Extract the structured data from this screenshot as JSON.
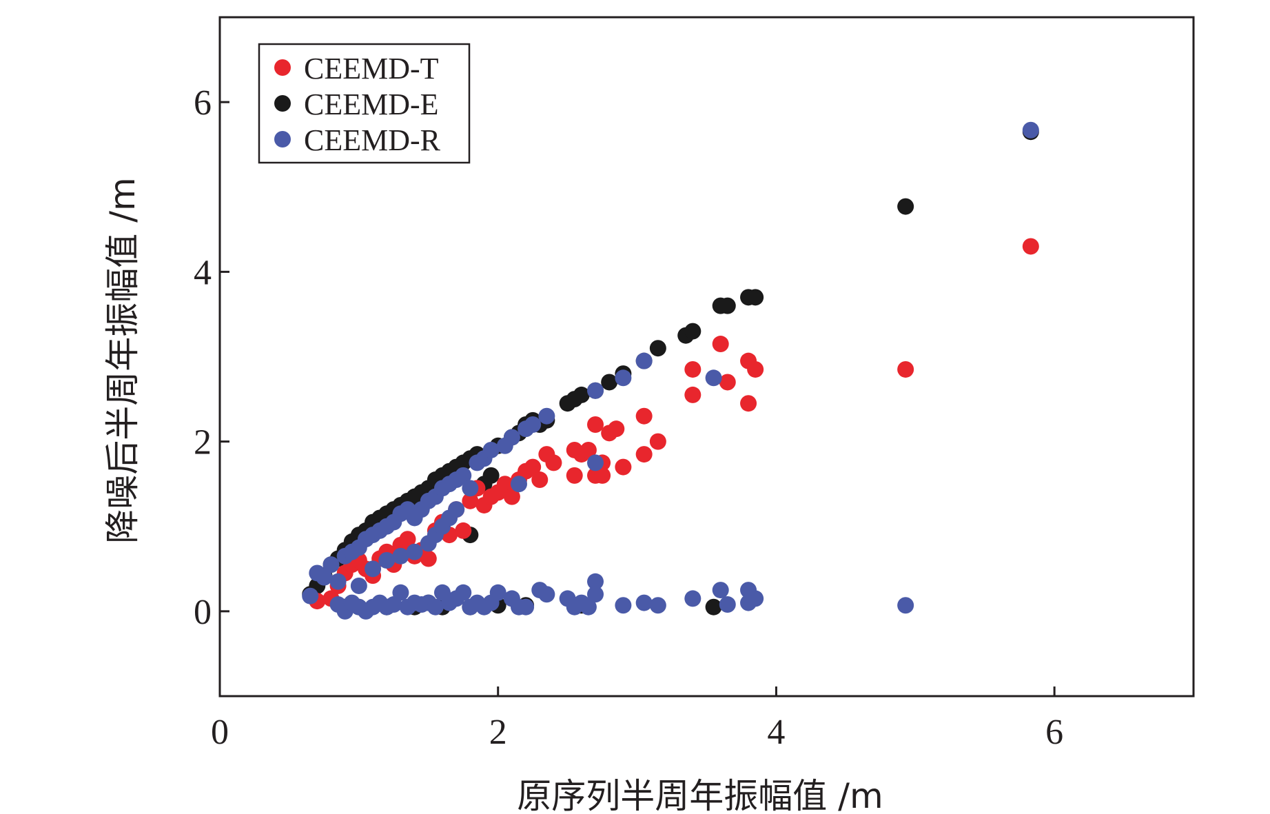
{
  "chart_data": {
    "type": "scatter",
    "title": "",
    "xlabel": "原序列半周年振幅值 /m",
    "ylabel": "降噪后半周年振幅值 /m",
    "xlim": [
      0,
      7
    ],
    "ylim": [
      -1,
      7
    ],
    "xticks": [
      0,
      2,
      4,
      6
    ],
    "yticks": [
      0,
      2,
      4,
      6
    ],
    "legend_position": "top-left",
    "series": [
      {
        "name": "CEEMD-T",
        "color": "#e8262d",
        "points": [
          [
            0.7,
            0.12
          ],
          [
            0.8,
            0.15
          ],
          [
            0.85,
            0.3
          ],
          [
            0.9,
            0.45
          ],
          [
            0.95,
            0.55
          ],
          [
            1.0,
            0.6
          ],
          [
            1.05,
            0.5
          ],
          [
            1.1,
            0.42
          ],
          [
            1.15,
            0.62
          ],
          [
            1.2,
            0.7
          ],
          [
            1.25,
            0.55
          ],
          [
            1.3,
            0.78
          ],
          [
            1.35,
            0.85
          ],
          [
            1.4,
            0.65
          ],
          [
            1.45,
            0.72
          ],
          [
            1.5,
            0.62
          ],
          [
            1.55,
            0.95
          ],
          [
            1.6,
            1.05
          ],
          [
            1.65,
            0.9
          ],
          [
            1.7,
            1.2
          ],
          [
            1.75,
            0.95
          ],
          [
            1.8,
            1.3
          ],
          [
            1.85,
            1.45
          ],
          [
            1.9,
            1.25
          ],
          [
            1.95,
            1.35
          ],
          [
            2.0,
            1.4
          ],
          [
            2.05,
            1.5
          ],
          [
            2.1,
            1.35
          ],
          [
            2.15,
            1.55
          ],
          [
            2.2,
            1.65
          ],
          [
            2.25,
            1.7
          ],
          [
            2.3,
            1.55
          ],
          [
            2.35,
            1.85
          ],
          [
            2.4,
            1.75
          ],
          [
            2.55,
            1.6
          ],
          [
            2.55,
            1.9
          ],
          [
            2.6,
            1.85
          ],
          [
            2.65,
            1.9
          ],
          [
            2.7,
            1.6
          ],
          [
            2.7,
            2.2
          ],
          [
            2.75,
            1.75
          ],
          [
            2.75,
            1.6
          ],
          [
            2.8,
            2.1
          ],
          [
            2.85,
            2.15
          ],
          [
            2.9,
            1.7
          ],
          [
            3.05,
            2.3
          ],
          [
            3.05,
            1.85
          ],
          [
            3.15,
            2.0
          ],
          [
            3.4,
            2.85
          ],
          [
            3.4,
            2.55
          ],
          [
            3.6,
            3.15
          ],
          [
            3.65,
            2.7
          ],
          [
            3.8,
            2.45
          ],
          [
            3.8,
            2.95
          ],
          [
            3.85,
            2.85
          ],
          [
            4.93,
            2.85
          ],
          [
            5.83,
            4.3
          ]
        ]
      },
      {
        "name": "CEEMD-E",
        "color": "#1a1a1a",
        "points": [
          [
            0.65,
            0.2
          ],
          [
            0.7,
            0.3
          ],
          [
            0.75,
            0.42
          ],
          [
            0.8,
            0.55
          ],
          [
            0.85,
            0.62
          ],
          [
            0.9,
            0.72
          ],
          [
            0.95,
            0.82
          ],
          [
            1.0,
            0.9
          ],
          [
            1.05,
            0.95
          ],
          [
            1.1,
            1.05
          ],
          [
            1.15,
            1.1
          ],
          [
            1.2,
            1.15
          ],
          [
            1.25,
            1.2
          ],
          [
            1.3,
            1.25
          ],
          [
            1.35,
            1.3
          ],
          [
            1.4,
            1.35
          ],
          [
            1.45,
            1.4
          ],
          [
            1.5,
            1.45
          ],
          [
            1.55,
            1.55
          ],
          [
            1.6,
            1.6
          ],
          [
            1.65,
            1.65
          ],
          [
            1.7,
            1.7
          ],
          [
            1.75,
            1.75
          ],
          [
            1.8,
            1.8
          ],
          [
            1.85,
            1.85
          ],
          [
            1.9,
            1.5
          ],
          [
            1.95,
            1.6
          ],
          [
            2.0,
            1.95
          ],
          [
            2.1,
            2.05
          ],
          [
            2.15,
            2.1
          ],
          [
            2.2,
            2.2
          ],
          [
            2.25,
            2.25
          ],
          [
            2.3,
            2.2
          ],
          [
            2.35,
            2.25
          ],
          [
            2.5,
            2.45
          ],
          [
            2.55,
            2.5
          ],
          [
            2.6,
            2.55
          ],
          [
            2.7,
            2.6
          ],
          [
            2.8,
            2.7
          ],
          [
            2.9,
            2.8
          ],
          [
            3.05,
            2.95
          ],
          [
            3.15,
            3.1
          ],
          [
            3.35,
            3.25
          ],
          [
            3.4,
            3.3
          ],
          [
            3.6,
            3.6
          ],
          [
            3.65,
            3.6
          ],
          [
            3.8,
            3.7
          ],
          [
            3.85,
            3.7
          ],
          [
            4.93,
            4.77
          ],
          [
            5.83,
            5.65
          ],
          [
            1.8,
            0.9
          ],
          [
            1.0,
            0.05
          ],
          [
            1.2,
            0.05
          ],
          [
            1.4,
            0.05
          ],
          [
            1.6,
            0.05
          ],
          [
            1.8,
            0.05
          ],
          [
            2.0,
            0.07
          ],
          [
            2.2,
            0.07
          ],
          [
            2.6,
            0.07
          ],
          [
            3.55,
            0.05
          ],
          [
            0.9,
            0.05
          ],
          [
            1.5,
            0.1
          ]
        ]
      },
      {
        "name": "CEEMD-R",
        "color": "#4a5aa8",
        "points": [
          [
            0.65,
            0.18
          ],
          [
            0.7,
            0.45
          ],
          [
            0.75,
            0.4
          ],
          [
            0.8,
            0.55
          ],
          [
            0.85,
            0.35
          ],
          [
            0.9,
            0.65
          ],
          [
            0.95,
            0.7
          ],
          [
            1.0,
            0.75
          ],
          [
            1.05,
            0.85
          ],
          [
            1.1,
            0.9
          ],
          [
            1.15,
            0.95
          ],
          [
            1.2,
            1.0
          ],
          [
            1.25,
            1.05
          ],
          [
            1.3,
            1.15
          ],
          [
            1.35,
            1.2
          ],
          [
            1.4,
            1.1
          ],
          [
            1.45,
            1.2
          ],
          [
            1.5,
            1.3
          ],
          [
            1.55,
            1.35
          ],
          [
            1.6,
            1.45
          ],
          [
            1.65,
            1.5
          ],
          [
            1.7,
            1.55
          ],
          [
            1.75,
            1.6
          ],
          [
            1.8,
            1.45
          ],
          [
            1.85,
            1.75
          ],
          [
            1.9,
            1.8
          ],
          [
            1.95,
            1.9
          ],
          [
            2.05,
            1.95
          ],
          [
            2.1,
            2.05
          ],
          [
            2.15,
            1.5
          ],
          [
            2.2,
            2.15
          ],
          [
            2.25,
            2.2
          ],
          [
            2.35,
            2.3
          ],
          [
            2.7,
            2.6
          ],
          [
            2.9,
            2.75
          ],
          [
            3.05,
            2.95
          ],
          [
            3.55,
            2.75
          ],
          [
            2.7,
            1.75
          ],
          [
            5.83,
            5.67
          ],
          [
            4.93,
            0.07
          ],
          [
            1.0,
            0.3
          ],
          [
            1.1,
            0.5
          ],
          [
            1.2,
            0.6
          ],
          [
            1.3,
            0.65
          ],
          [
            1.4,
            0.7
          ],
          [
            1.5,
            0.8
          ],
          [
            1.55,
            0.9
          ],
          [
            1.6,
            1.0
          ],
          [
            1.65,
            1.1
          ],
          [
            1.7,
            1.2
          ],
          [
            0.85,
            0.08
          ],
          [
            0.9,
            0.0
          ],
          [
            0.95,
            0.1
          ],
          [
            1.0,
            0.05
          ],
          [
            1.05,
            0.0
          ],
          [
            1.1,
            0.05
          ],
          [
            1.15,
            0.1
          ],
          [
            1.2,
            0.05
          ],
          [
            1.25,
            0.08
          ],
          [
            1.3,
            0.22
          ],
          [
            1.35,
            0.05
          ],
          [
            1.4,
            0.1
          ],
          [
            1.45,
            0.08
          ],
          [
            1.5,
            0.1
          ],
          [
            1.55,
            0.05
          ],
          [
            1.6,
            0.22
          ],
          [
            1.65,
            0.1
          ],
          [
            1.7,
            0.15
          ],
          [
            1.75,
            0.22
          ],
          [
            1.8,
            0.05
          ],
          [
            1.85,
            0.1
          ],
          [
            1.9,
            0.05
          ],
          [
            1.95,
            0.1
          ],
          [
            2.0,
            0.22
          ],
          [
            2.1,
            0.15
          ],
          [
            2.15,
            0.05
          ],
          [
            2.2,
            0.05
          ],
          [
            2.3,
            0.25
          ],
          [
            2.35,
            0.2
          ],
          [
            2.5,
            0.15
          ],
          [
            2.55,
            0.05
          ],
          [
            2.6,
            0.1
          ],
          [
            2.65,
            0.05
          ],
          [
            2.7,
            0.35
          ],
          [
            2.7,
            0.2
          ],
          [
            2.9,
            0.07
          ],
          [
            3.05,
            0.1
          ],
          [
            3.15,
            0.07
          ],
          [
            3.4,
            0.15
          ],
          [
            3.6,
            0.25
          ],
          [
            3.65,
            0.08
          ],
          [
            3.8,
            0.25
          ],
          [
            3.85,
            0.15
          ],
          [
            3.8,
            0.1
          ]
        ]
      }
    ]
  }
}
